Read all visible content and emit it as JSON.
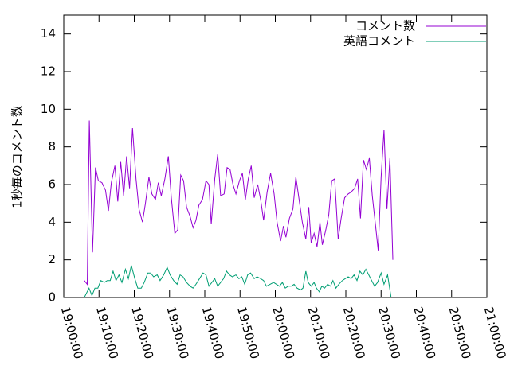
{
  "chart_data": {
    "type": "line",
    "title": "",
    "xlabel": "",
    "ylabel": "1秒毎のコメント数",
    "xlim": [
      "19:00:00",
      "21:00:00"
    ],
    "ylim": [
      0,
      15
    ],
    "x_ticks": [
      "19:00:00",
      "19:10:00",
      "19:20:00",
      "19:30:00",
      "19:40:00",
      "19:50:00",
      "20:00:00",
      "20:10:00",
      "20:20:00",
      "20:30:00",
      "20:40:00",
      "20:50:00",
      "21:00:00"
    ],
    "y_ticks": [
      "0",
      "2",
      "4",
      "6",
      "8",
      "10",
      "12",
      "14"
    ],
    "grid": false,
    "legend_position": "top-right",
    "series": [
      {
        "name": "コメント数",
        "color": "#9400d3",
        "points": [
          [
            "19:05:50",
            0.9
          ],
          [
            "19:06:40",
            0.7
          ],
          [
            "19:07:15",
            9.4
          ],
          [
            "19:08:10",
            2.4
          ],
          [
            "19:09:00",
            6.9
          ],
          [
            "19:09:50",
            6.2
          ],
          [
            "19:10:50",
            6.1
          ],
          [
            "19:11:50",
            5.7
          ],
          [
            "19:12:40",
            4.6
          ],
          [
            "19:13:30",
            6.1
          ],
          [
            "19:14:30",
            7.0
          ],
          [
            "19:15:20",
            5.1
          ],
          [
            "19:16:10",
            7.2
          ],
          [
            "19:17:00",
            5.4
          ],
          [
            "19:17:50",
            7.5
          ],
          [
            "19:18:40",
            5.8
          ],
          [
            "19:19:30",
            9.0
          ],
          [
            "19:20:30",
            6.3
          ],
          [
            "19:21:20",
            4.7
          ],
          [
            "19:22:20",
            4.0
          ],
          [
            "19:23:10",
            5.0
          ],
          [
            "19:24:10",
            6.4
          ],
          [
            "19:25:00",
            5.5
          ],
          [
            "19:26:00",
            5.2
          ],
          [
            "19:26:50",
            6.1
          ],
          [
            "19:27:40",
            5.4
          ],
          [
            "19:28:40",
            6.3
          ],
          [
            "19:29:40",
            7.5
          ],
          [
            "19:30:30",
            5.3
          ],
          [
            "19:31:30",
            3.4
          ],
          [
            "19:32:20",
            3.6
          ],
          [
            "19:33:10",
            6.5
          ],
          [
            "19:34:00",
            6.2
          ],
          [
            "19:34:50",
            4.8
          ],
          [
            "19:35:50",
            4.3
          ],
          [
            "19:36:40",
            3.7
          ],
          [
            "19:37:30",
            4.1
          ],
          [
            "19:38:20",
            4.9
          ],
          [
            "19:39:20",
            5.2
          ],
          [
            "19:40:20",
            6.2
          ],
          [
            "19:41:10",
            6.0
          ],
          [
            "19:41:50",
            3.9
          ],
          [
            "19:42:50",
            6.3
          ],
          [
            "19:43:40",
            7.6
          ],
          [
            "19:44:30",
            5.4
          ],
          [
            "19:45:30",
            5.5
          ],
          [
            "19:46:20",
            6.9
          ],
          [
            "19:47:10",
            6.8
          ],
          [
            "19:48:00",
            6.0
          ],
          [
            "19:48:50",
            5.5
          ],
          [
            "19:49:50",
            6.2
          ],
          [
            "19:50:40",
            6.6
          ],
          [
            "19:51:30",
            5.2
          ],
          [
            "19:52:20",
            6.3
          ],
          [
            "19:53:10",
            7.0
          ],
          [
            "19:54:00",
            5.3
          ],
          [
            "19:55:00",
            6.0
          ],
          [
            "19:55:50",
            5.2
          ],
          [
            "19:56:40",
            4.1
          ],
          [
            "19:57:40",
            5.6
          ],
          [
            "19:58:40",
            6.6
          ],
          [
            "19:59:40",
            5.5
          ],
          [
            "20:00:30",
            4.0
          ],
          [
            "20:01:30",
            3.0
          ],
          [
            "20:02:20",
            3.8
          ],
          [
            "20:03:00",
            3.2
          ],
          [
            "20:04:00",
            4.2
          ],
          [
            "20:05:00",
            4.7
          ],
          [
            "20:05:50",
            6.4
          ],
          [
            "20:06:50",
            5.1
          ],
          [
            "20:07:40",
            4.0
          ],
          [
            "20:08:40",
            3.1
          ],
          [
            "20:09:30",
            4.8
          ],
          [
            "20:10:10",
            2.9
          ],
          [
            "20:11:00",
            3.4
          ],
          [
            "20:11:50",
            2.7
          ],
          [
            "20:12:40",
            4.0
          ],
          [
            "20:13:20",
            2.8
          ],
          [
            "20:14:20",
            3.6
          ],
          [
            "20:15:10",
            4.4
          ],
          [
            "20:16:00",
            6.2
          ],
          [
            "20:16:50",
            6.3
          ],
          [
            "20:17:50",
            3.1
          ],
          [
            "20:18:40",
            4.2
          ],
          [
            "20:19:40",
            5.3
          ],
          [
            "20:20:40",
            5.5
          ],
          [
            "20:21:30",
            5.6
          ],
          [
            "20:22:30",
            5.8
          ],
          [
            "20:23:20",
            6.3
          ],
          [
            "20:24:10",
            4.2
          ],
          [
            "20:25:00",
            7.3
          ],
          [
            "20:25:50",
            6.8
          ],
          [
            "20:26:40",
            7.4
          ],
          [
            "20:27:30",
            5.4
          ],
          [
            "20:28:30",
            3.7
          ],
          [
            "20:29:10",
            2.5
          ],
          [
            "20:30:00",
            6.4
          ],
          [
            "20:30:50",
            8.9
          ],
          [
            "20:31:40",
            4.7
          ],
          [
            "20:32:30",
            7.4
          ],
          [
            "20:33:20",
            2.0
          ]
        ]
      },
      {
        "name": "英語コメント",
        "color": "#009e73",
        "points": [
          [
            "19:05:50",
            0.0
          ],
          [
            "19:07:10",
            0.5
          ],
          [
            "19:08:00",
            0.1
          ],
          [
            "19:08:50",
            0.5
          ],
          [
            "19:09:40",
            0.5
          ],
          [
            "19:10:30",
            0.9
          ],
          [
            "19:11:30",
            0.8
          ],
          [
            "19:12:20",
            0.9
          ],
          [
            "19:13:10",
            0.9
          ],
          [
            "19:14:00",
            1.4
          ],
          [
            "19:14:50",
            0.9
          ],
          [
            "19:15:40",
            1.2
          ],
          [
            "19:16:30",
            0.8
          ],
          [
            "19:17:30",
            1.5
          ],
          [
            "19:18:20",
            1.0
          ],
          [
            "19:19:10",
            1.7
          ],
          [
            "19:20:10",
            1.0
          ],
          [
            "19:21:00",
            0.5
          ],
          [
            "19:22:00",
            0.5
          ],
          [
            "19:22:50",
            0.8
          ],
          [
            "19:23:50",
            1.3
          ],
          [
            "19:24:40",
            1.3
          ],
          [
            "19:25:30",
            1.1
          ],
          [
            "19:26:30",
            1.2
          ],
          [
            "19:27:20",
            0.9
          ],
          [
            "19:28:20",
            1.2
          ],
          [
            "19:29:20",
            1.6
          ],
          [
            "19:30:10",
            1.2
          ],
          [
            "19:31:10",
            0.9
          ],
          [
            "19:32:10",
            0.7
          ],
          [
            "19:33:00",
            1.2
          ],
          [
            "19:33:50",
            1.1
          ],
          [
            "19:34:50",
            0.8
          ],
          [
            "19:35:50",
            0.6
          ],
          [
            "19:36:40",
            0.5
          ],
          [
            "19:37:30",
            0.7
          ],
          [
            "19:38:30",
            1.0
          ],
          [
            "19:39:30",
            1.3
          ],
          [
            "19:40:20",
            1.2
          ],
          [
            "19:41:10",
            0.6
          ],
          [
            "19:42:00",
            0.8
          ],
          [
            "19:42:50",
            1.0
          ],
          [
            "19:43:40",
            0.6
          ],
          [
            "19:44:30",
            0.8
          ],
          [
            "19:45:20",
            1.0
          ],
          [
            "19:46:10",
            1.4
          ],
          [
            "19:47:00",
            1.2
          ],
          [
            "19:47:50",
            1.1
          ],
          [
            "19:48:50",
            1.2
          ],
          [
            "19:49:40",
            1.0
          ],
          [
            "19:50:30",
            1.1
          ],
          [
            "19:51:20",
            0.7
          ],
          [
            "19:52:10",
            1.2
          ],
          [
            "19:53:00",
            1.3
          ],
          [
            "19:54:00",
            1.0
          ],
          [
            "19:54:50",
            1.1
          ],
          [
            "19:55:50",
            1.0
          ],
          [
            "19:56:40",
            0.9
          ],
          [
            "19:57:30",
            0.6
          ],
          [
            "19:58:30",
            0.7
          ],
          [
            "19:59:30",
            0.8
          ],
          [
            "20:00:20",
            0.7
          ],
          [
            "20:01:10",
            0.6
          ],
          [
            "20:02:00",
            0.8
          ],
          [
            "20:02:50",
            0.5
          ],
          [
            "20:03:40",
            0.6
          ],
          [
            "20:04:30",
            0.6
          ],
          [
            "20:05:20",
            0.7
          ],
          [
            "20:06:10",
            0.5
          ],
          [
            "20:07:10",
            0.4
          ],
          [
            "20:07:50",
            0.5
          ],
          [
            "20:08:40",
            1.4
          ],
          [
            "20:09:20",
            0.8
          ],
          [
            "20:10:10",
            0.6
          ],
          [
            "20:11:00",
            0.8
          ],
          [
            "20:11:40",
            0.5
          ],
          [
            "20:12:30",
            0.3
          ],
          [
            "20:13:10",
            0.6
          ],
          [
            "20:14:00",
            0.5
          ],
          [
            "20:14:50",
            0.7
          ],
          [
            "20:15:40",
            0.6
          ],
          [
            "20:16:20",
            0.9
          ],
          [
            "20:17:10",
            0.5
          ],
          [
            "20:18:00",
            0.7
          ],
          [
            "20:19:00",
            0.9
          ],
          [
            "20:19:50",
            1.0
          ],
          [
            "20:20:40",
            1.1
          ],
          [
            "20:21:30",
            1.0
          ],
          [
            "20:22:20",
            1.2
          ],
          [
            "20:23:10",
            0.9
          ],
          [
            "20:24:00",
            1.4
          ],
          [
            "20:24:50",
            1.2
          ],
          [
            "20:25:40",
            1.5
          ],
          [
            "20:26:30",
            1.2
          ],
          [
            "20:27:20",
            0.9
          ],
          [
            "20:28:10",
            0.6
          ],
          [
            "20:29:00",
            0.8
          ],
          [
            "20:30:00",
            1.3
          ],
          [
            "20:30:50",
            0.7
          ],
          [
            "20:31:50",
            1.2
          ],
          [
            "20:32:50",
            0.0
          ]
        ]
      }
    ]
  }
}
